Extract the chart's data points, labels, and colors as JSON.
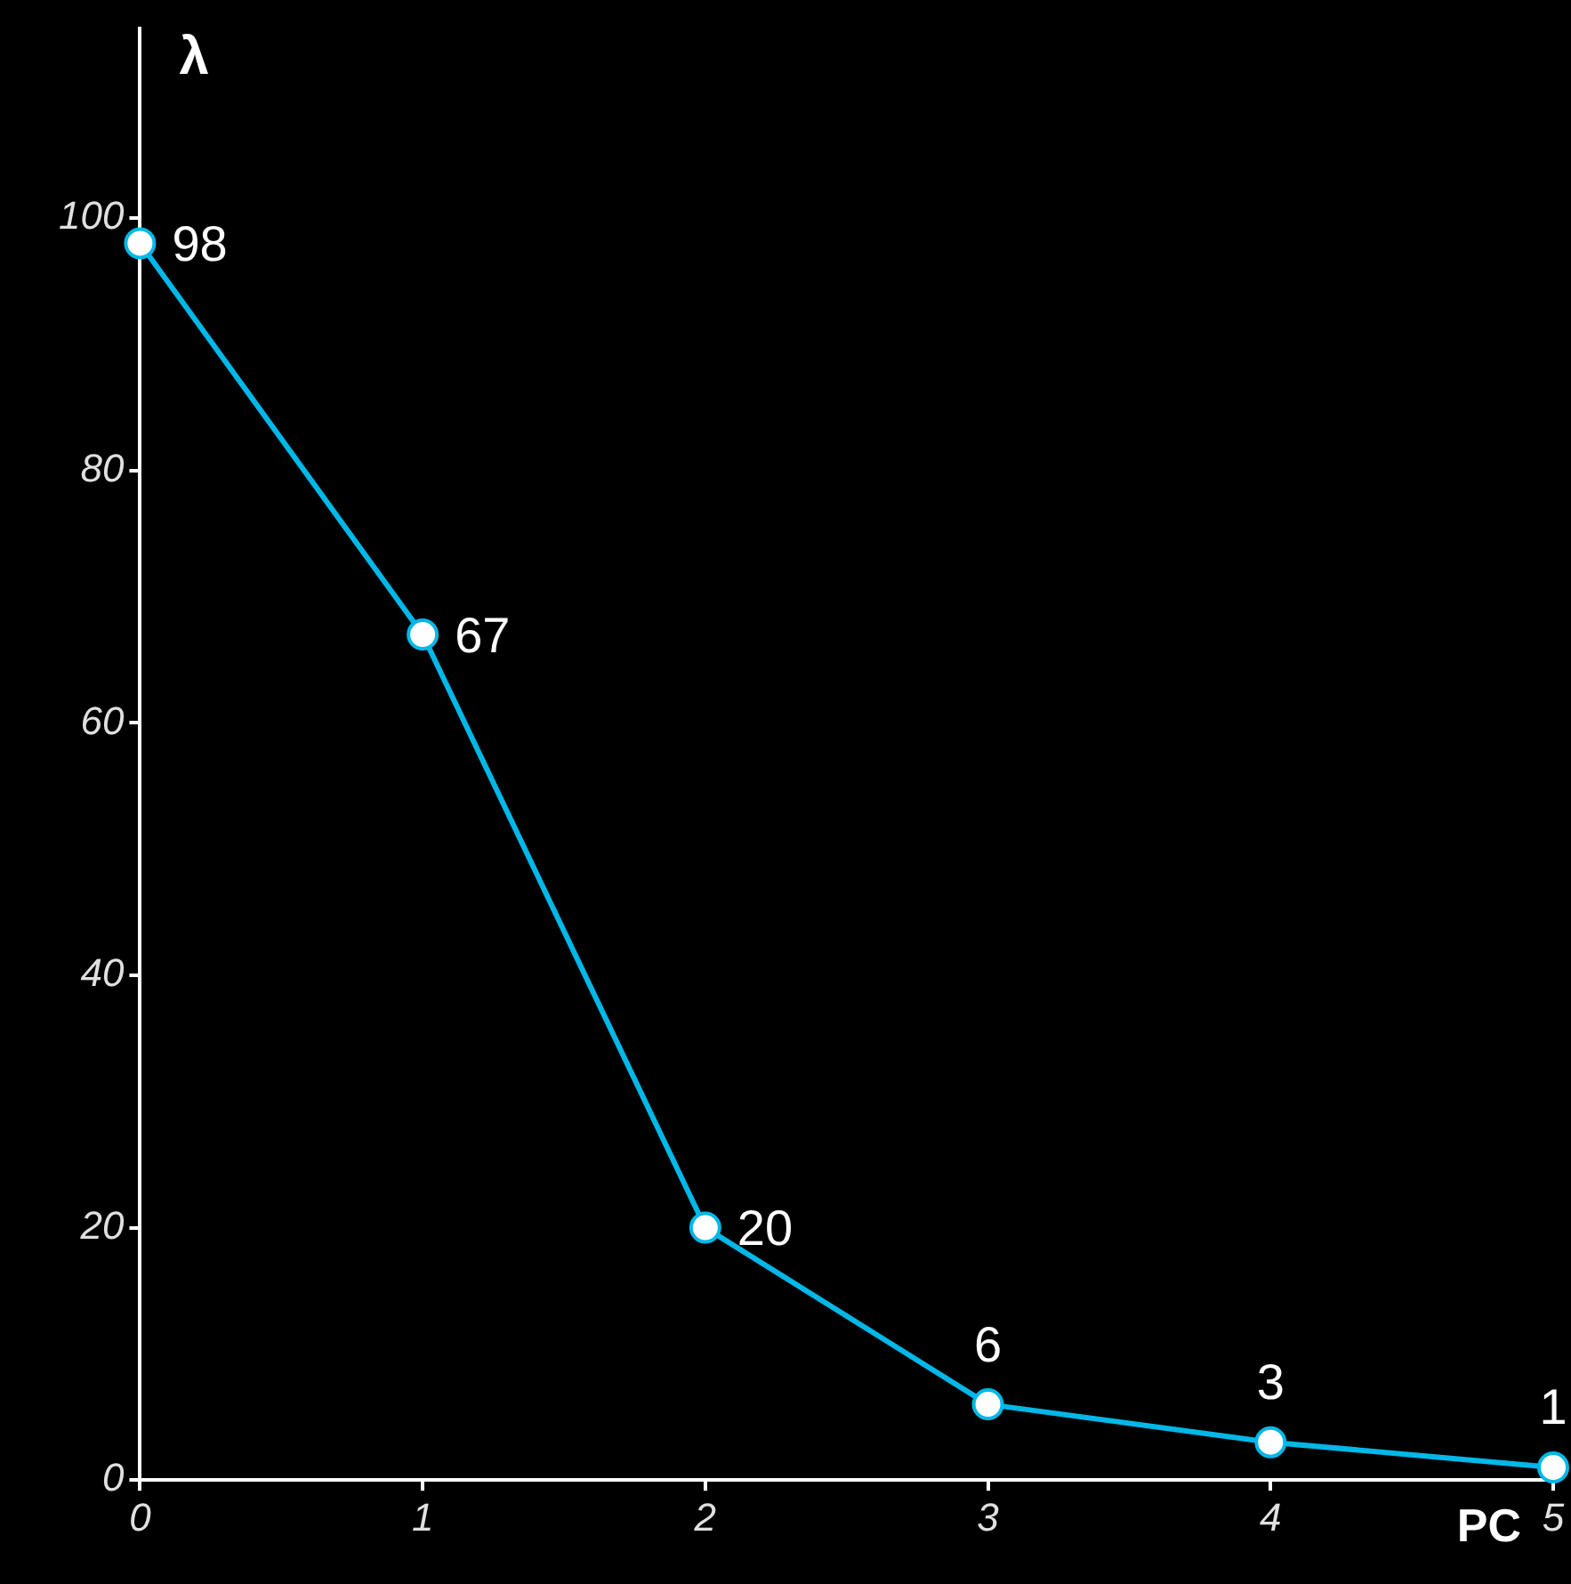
{
  "chart_data": {
    "type": "line",
    "xlabel": "PC",
    "ylabel": "λ",
    "x": [
      0,
      1,
      2,
      3,
      4,
      5
    ],
    "series": [
      {
        "color": "#00b8e8",
        "values": [
          98,
          67,
          20,
          6,
          3,
          1
        ]
      }
    ],
    "xlim": [
      0,
      5
    ],
    "xticks": [
      0,
      1,
      2,
      3,
      4,
      5
    ],
    "ylim": [
      0,
      115
    ],
    "yticks": [
      0,
      20,
      40,
      60,
      80,
      100
    ],
    "grid": false,
    "legend": false,
    "marker": "circle",
    "line_style": "solid",
    "data_labels": true
  }
}
